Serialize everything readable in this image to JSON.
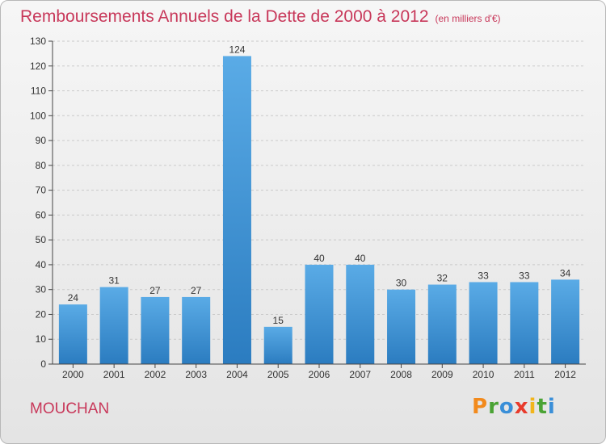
{
  "chart_data": {
    "type": "bar",
    "title": "Remboursements Annuels de la Dette de 2000 à 2012",
    "unit_note": "(en milliers d'€)",
    "categories": [
      "2000",
      "2001",
      "2002",
      "2003",
      "2004",
      "2005",
      "2006",
      "2007",
      "2008",
      "2009",
      "2010",
      "2011",
      "2012"
    ],
    "values": [
      24,
      31,
      27,
      27,
      124,
      15,
      40,
      40,
      30,
      32,
      33,
      33,
      34
    ],
    "ylim": [
      0,
      130
    ],
    "yticks": [
      0,
      10,
      20,
      30,
      40,
      50,
      60,
      70,
      80,
      90,
      100,
      110,
      120,
      130
    ],
    "grid": true,
    "bar_color_top": "#5aabe6",
    "bar_color_bottom": "#2b7cc0"
  },
  "commune_name": "MOUCHAN",
  "logo": {
    "letters": [
      "P",
      "r",
      "o",
      "x",
      "i",
      "t",
      "i"
    ],
    "colors": [
      "#f28a1c",
      "#4aa334",
      "#3a8fd8",
      "#e83b2c",
      "#f2b51c",
      "#4aa334",
      "#3a8fd8"
    ]
  },
  "colors": {
    "accent": "#c8385a"
  }
}
